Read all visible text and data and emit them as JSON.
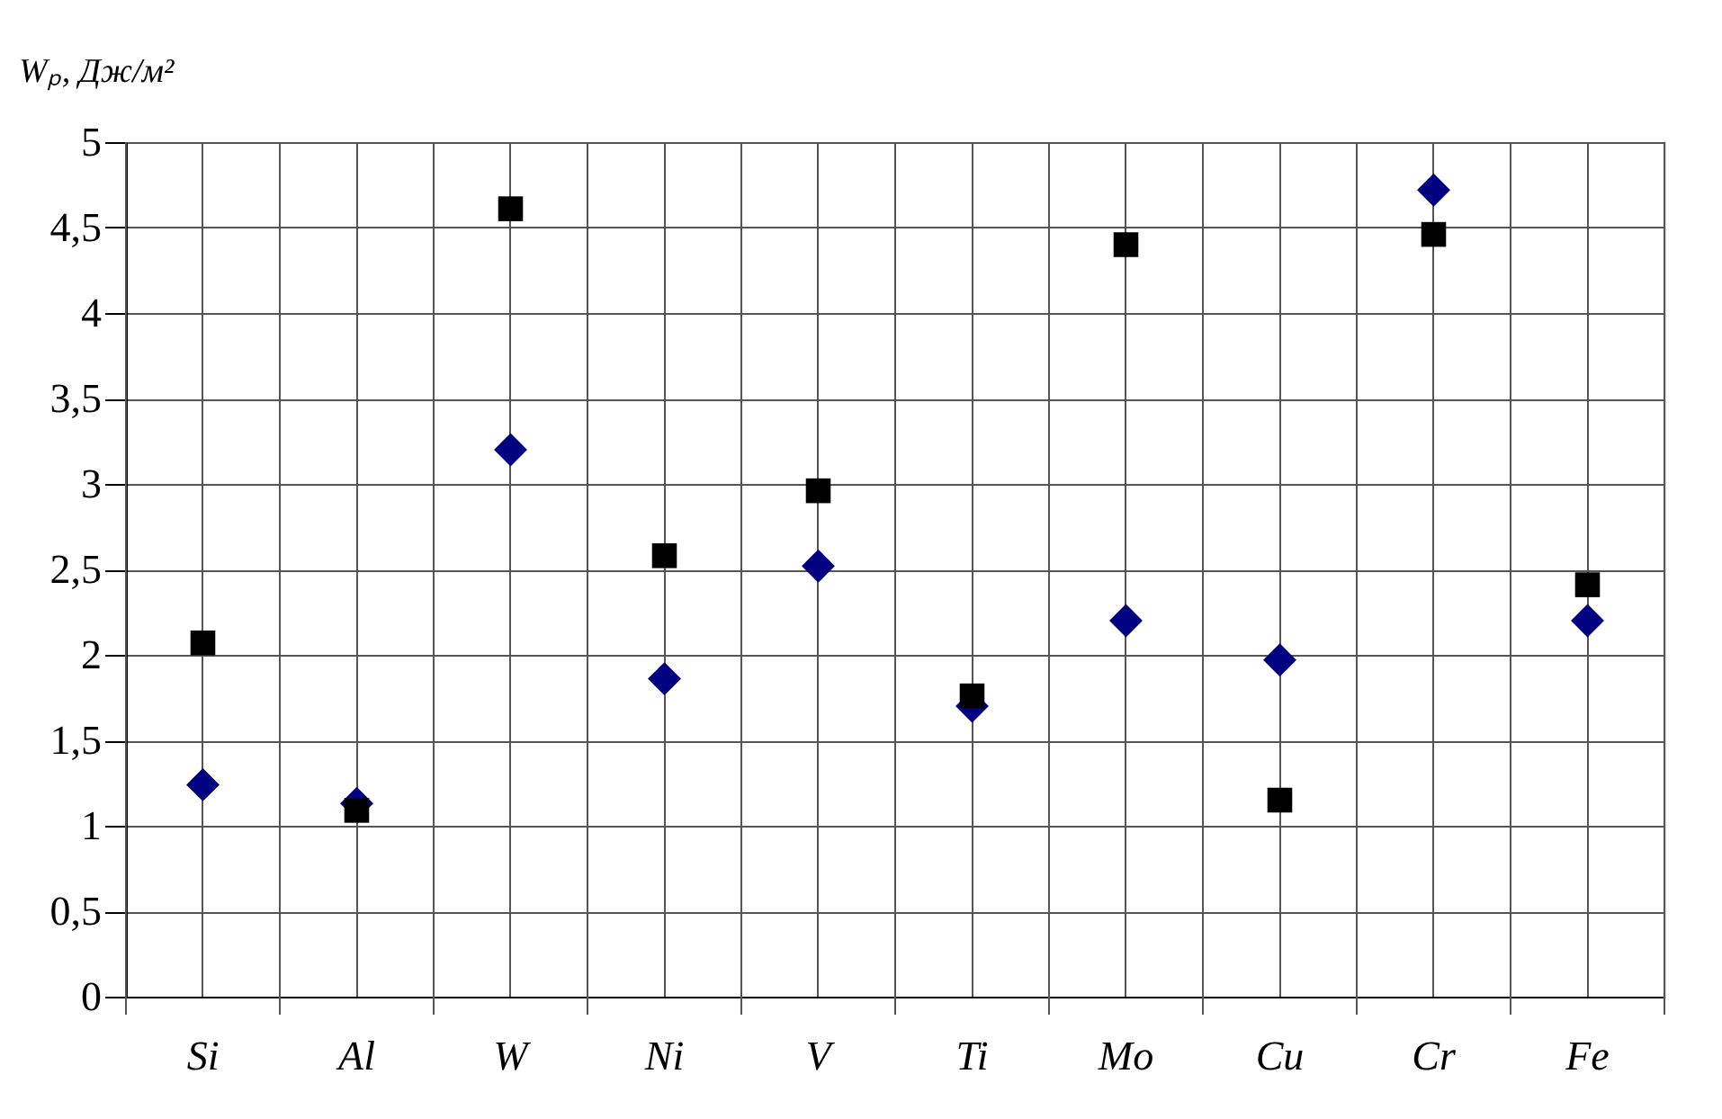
{
  "chart_data": {
    "type": "scatter",
    "ylabel": "Wₚ, Дж/м²",
    "categories": [
      "Si",
      "Al",
      "W",
      "Ni",
      "V",
      "Ti",
      "Mo",
      "Cu",
      "Cr",
      "Fe"
    ],
    "series": [
      {
        "color": "#000080",
        "marker": "diamond",
        "values": [
          1.24,
          1.13,
          3.2,
          1.86,
          2.52,
          1.7,
          2.2,
          1.97,
          4.72,
          2.2
        ]
      },
      {
        "color": "#000000",
        "marker": "square",
        "values": [
          2.07,
          1.09,
          4.61,
          2.58,
          2.96,
          1.76,
          4.4,
          1.15,
          4.46,
          2.41
        ]
      }
    ],
    "ylim": [
      0,
      5
    ],
    "yticks": [
      0,
      {
        "value": 0.5,
        "label": "0,5"
      },
      1,
      {
        "value": 1.5,
        "label": "1,5"
      },
      2,
      {
        "value": 2.5,
        "label": "2,5"
      },
      3,
      {
        "value": 3.5,
        "label": "3,5"
      },
      4,
      {
        "value": 4.5,
        "label": "4,5"
      },
      5
    ],
    "grid": true
  }
}
